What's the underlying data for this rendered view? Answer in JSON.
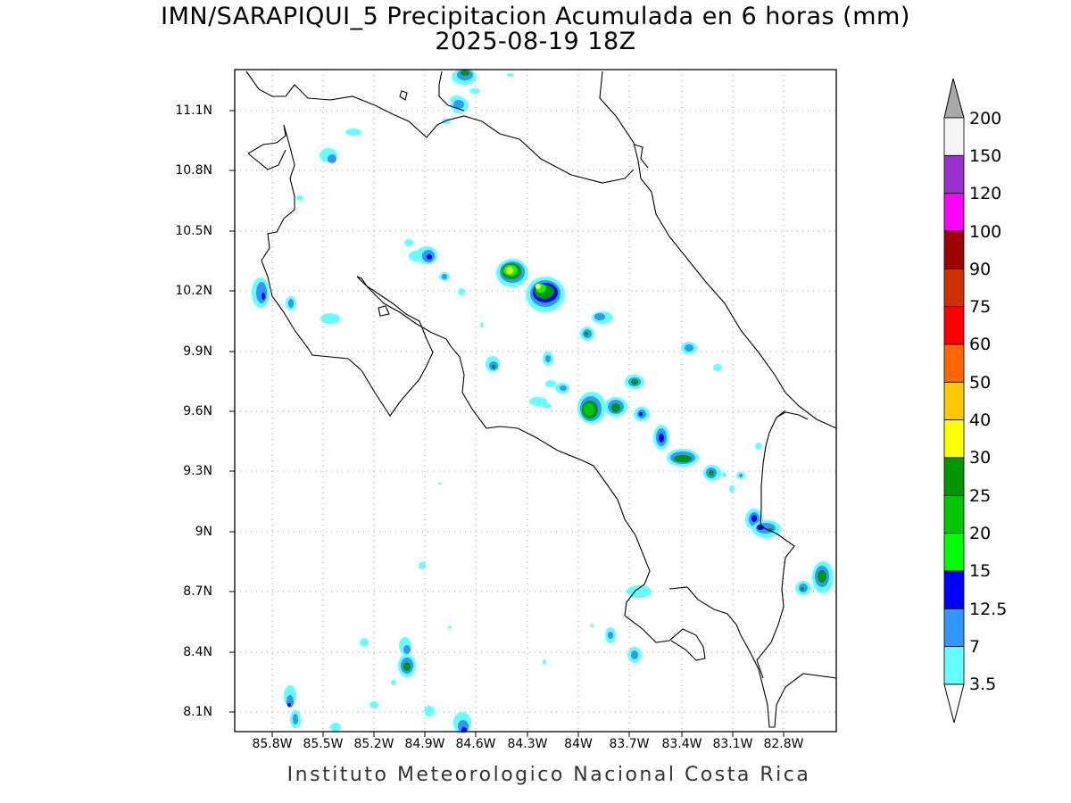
{
  "title_line1": "IMN/SARAPIQUI_5 Precipitacion Acumulada en 6 horas (mm)",
  "title_line2": "2025-08-19 18Z",
  "footer": "Instituto Meteorologico Nacional Costa Rica",
  "lat_labels": [
    "11.1N",
    "10.8N",
    "10.5N",
    "10.2N",
    "9.9N",
    "9.6N",
    "9.3N",
    "9N",
    "8.7N",
    "8.4N",
    "8.1N"
  ],
  "lon_labels": [
    "85.8W",
    "85.5W",
    "85.2W",
    "84.9W",
    "84.6W",
    "84.3W",
    "84W",
    "83.7W",
    "83.4W",
    "83.1W",
    "82.8W"
  ],
  "colorbar": {
    "labels": [
      "200",
      "150",
      "120",
      "100",
      "90",
      "75",
      "60",
      "50",
      "40",
      "30",
      "25",
      "20",
      "15",
      "12.5",
      "7",
      "3.5"
    ],
    "colors": [
      "#f5f5f5",
      "#9b30d0",
      "#ff00ff",
      "#a00000",
      "#d03000",
      "#ff0000",
      "#ff6600",
      "#ffc800",
      "#ffff00",
      "#009600",
      "#00c800",
      "#00ff00",
      "#0000ff",
      "#3296ff",
      "#64ffff"
    ],
    "over_color": "#a8a8a8"
  }
}
